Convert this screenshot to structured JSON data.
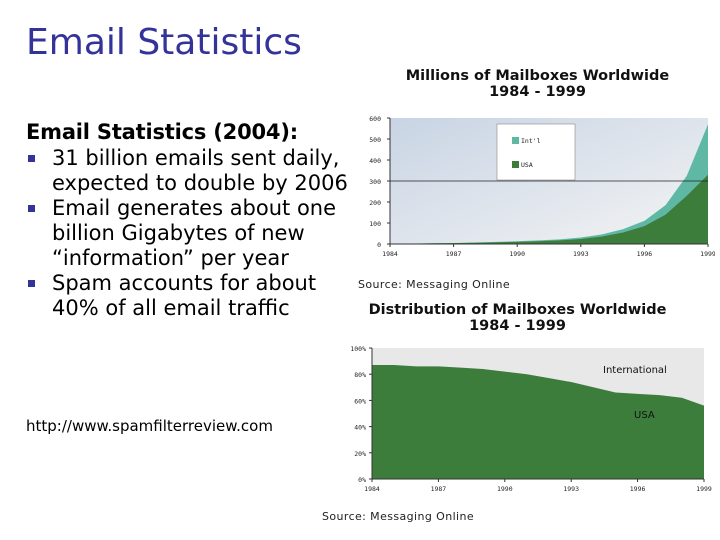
{
  "slide": {
    "title": "Email Statistics",
    "subheading": "Email Statistics (2004):",
    "bullets": [
      "31 billion emails sent daily, expected to double by 2006",
      "Email generates about one billion Gigabytes of new “information” per year",
      "Spam accounts for about 40% of all email traffic"
    ],
    "url": "http://www.spamfilterreview.com"
  },
  "colors": {
    "title": "#333399",
    "bullet": "#333399",
    "intl": "#5fb8a4",
    "usa": "#3d7d3c",
    "plot_bg": "#c8d4e4",
    "plot_bg2": "#eeeeee"
  },
  "chart_data": [
    {
      "type": "area",
      "stacked": true,
      "title_line1": "Millions of Mailboxes Worldwide",
      "title_line2": "1984 - 1999",
      "source": "Source: Messaging Online",
      "x": [
        1984,
        1985,
        1986,
        1987,
        1988,
        1989,
        1990,
        1991,
        1992,
        1993,
        1994,
        1995,
        1996,
        1997,
        1998,
        1999
      ],
      "x_tick_labels": [
        "1984",
        "1987",
        "1990",
        "1993",
        "1996",
        "1999"
      ],
      "ylim": [
        0,
        600
      ],
      "y_tick_labels": [
        "0",
        "100",
        "200",
        "300",
        "400",
        "500",
        "600"
      ],
      "legend": [
        "Int'l",
        "USA"
      ],
      "series": [
        {
          "name": "USA",
          "values": [
            1,
            2,
            3,
            4,
            6,
            8,
            10,
            13,
            17,
            24,
            36,
            55,
            85,
            140,
            230,
            330
          ]
        },
        {
          "name": "Int'l",
          "values": [
            0,
            0,
            1,
            1,
            1,
            2,
            3,
            4,
            5,
            7,
            10,
            16,
            25,
            45,
            95,
            240
          ]
        }
      ]
    },
    {
      "type": "area",
      "stacked": true,
      "percent": true,
      "title_line1": "Distribution of Mailboxes Worldwide",
      "title_line2": "1984 - 1999",
      "source": "Source: Messaging Online",
      "x": [
        1984,
        1985,
        1986,
        1987,
        1988,
        1989,
        1990,
        1991,
        1992,
        1993,
        1994,
        1995,
        1996,
        1997,
        1998,
        1999
      ],
      "x_tick_labels": [
        "1984",
        "1987",
        "1990",
        "1993",
        "1996",
        "1999"
      ],
      "ylim": [
        0,
        100
      ],
      "y_tick_labels": [
        "0%",
        "20%",
        "40%",
        "60%",
        "80%",
        "100%"
      ],
      "labels": [
        "International",
        "USA"
      ],
      "series": [
        {
          "name": "USA",
          "values": [
            87,
            87,
            86,
            86,
            85,
            84,
            82,
            80,
            77,
            74,
            70,
            66,
            65,
            64,
            62,
            56
          ]
        },
        {
          "name": "International",
          "values": [
            13,
            13,
            14,
            14,
            15,
            16,
            18,
            20,
            23,
            26,
            30,
            34,
            35,
            36,
            38,
            44
          ]
        }
      ]
    }
  ]
}
